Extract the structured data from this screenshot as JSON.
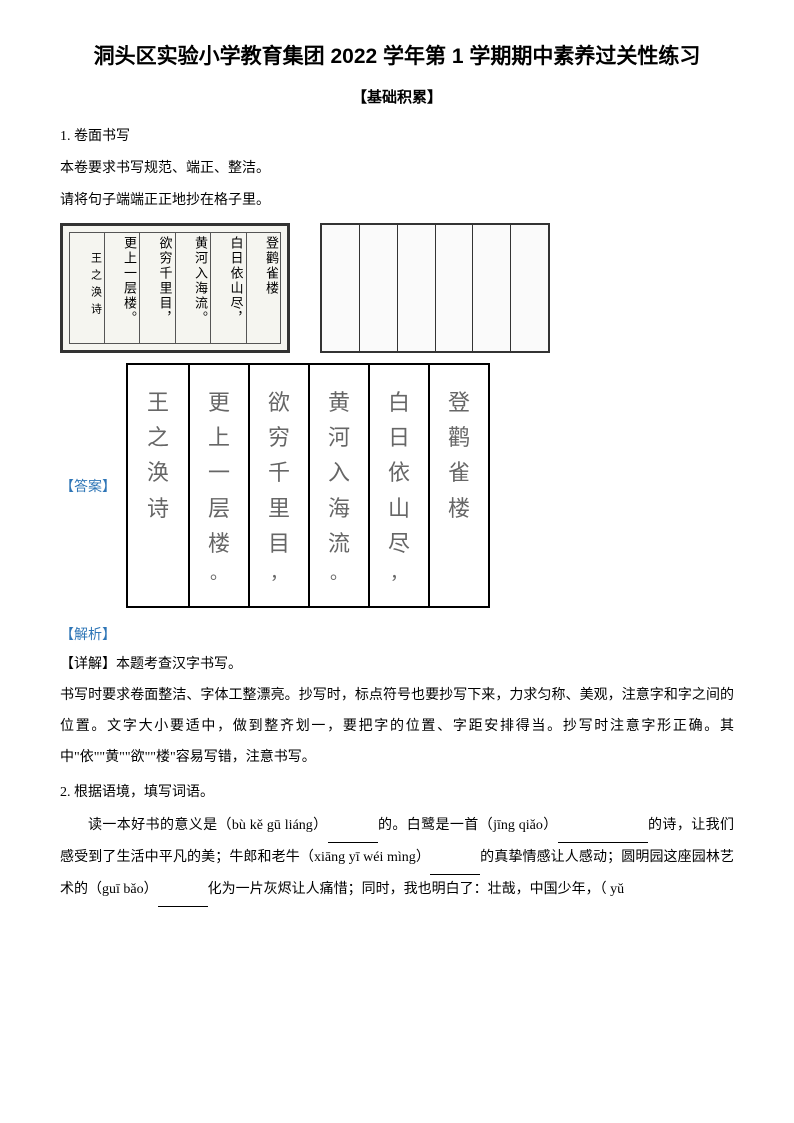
{
  "title": "洞头区实验小学教育集团 2022 学年第 1 学期期中素养过关性练习",
  "subtitle": "【基础积累】",
  "q1": {
    "number": "1. 卷面书写",
    "line1": "本卷要求书写规范、端正、整洁。",
    "line2": "请将句子端端正正地抄在格子里。"
  },
  "calligraphy": {
    "cols": [
      "登鹳雀楼",
      "白日依山尽，",
      "黄河入海流。",
      "欲穷千里目，",
      "更上一层楼。"
    ],
    "signature": "王之涣诗"
  },
  "answer_label": "【答案】",
  "answer_grid": {
    "cols": [
      {
        "chars": [
          "登",
          "鹳",
          "雀",
          "楼"
        ],
        "punct": ""
      },
      {
        "chars": [
          "白",
          "日",
          "依",
          "山",
          "尽"
        ],
        "punct": "，"
      },
      {
        "chars": [
          "黄",
          "河",
          "入",
          "海",
          "流"
        ],
        "punct": "。"
      },
      {
        "chars": [
          "欲",
          "穷",
          "千",
          "里",
          "目"
        ],
        "punct": "，"
      },
      {
        "chars": [
          "更",
          "上",
          "一",
          "层",
          "楼"
        ],
        "punct": "。"
      },
      {
        "chars": [
          "王",
          "之",
          "涣",
          "诗"
        ],
        "punct": ""
      }
    ]
  },
  "explain_label": "【解析】",
  "detail_label": "【详解】",
  "detail_text": "本题考查汉字书写。",
  "explain_body": "书写时要求卷面整洁、字体工整漂亮。抄写时，标点符号也要抄写下来，力求匀称、美观，注意字和字之间的位置。文字大小要适中，做到整齐划一，要把字的位置、字距安排得当。抄写时注意字形正确。其中\"依\"\"黄\"\"欲\"\"楼\"容易写错，注意书写。",
  "q2": {
    "number": "2. 根据语境，填写词语。",
    "body_prefix": "读一本好书的意义是（bù kě gū liáng）",
    "body_mid1": "的。白鹭是一首（jīng qiǎo）",
    "body_mid2": "的诗，让我们感受到了生活中平凡的美；牛郎和老牛（xiāng yī wéi mìng）",
    "body_mid3": "的真挚情感让人感动；圆明园这座园林艺术的（guī bǎo）",
    "body_mid4": "化为一片灰烬让人痛惜；同时，我也明白了：壮哉，中国少年，（ yǔ"
  },
  "colors": {
    "text": "#000000",
    "accent": "#2e75b6",
    "answer_text": "#666666",
    "background": "#ffffff"
  },
  "fonts": {
    "title_family": "SimHei",
    "body_family": "SimSun",
    "calligraphy_family": "KaiTi",
    "title_size": 21,
    "body_size": 14,
    "answer_char_size": 22
  }
}
